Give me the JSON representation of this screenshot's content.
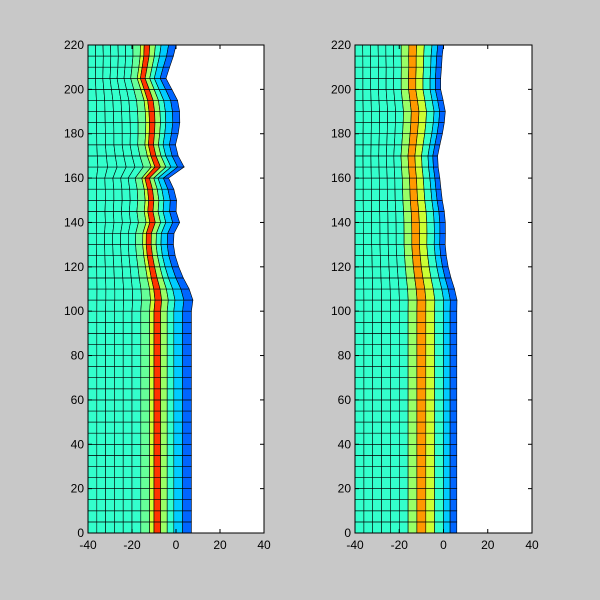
{
  "background": "#c8c8c8",
  "chart_data": [
    {
      "type": "heatmap",
      "xlim": [
        -40,
        40
      ],
      "ylim": [
        0,
        220
      ],
      "xticks": [
        "-40",
        "-20",
        "0",
        "20",
        "40"
      ],
      "yticks": [
        "0",
        "20",
        "40",
        "60",
        "80",
        "100",
        "120",
        "140",
        "160",
        "180",
        "200",
        "220"
      ],
      "grid": false,
      "mesh": {
        "left_x": -40,
        "straight_top_y": 100,
        "row_spacing": 5,
        "top_y": 220,
        "columns": [
          {
            "x0": -40,
            "x1": -36,
            "color": "#33ffcc"
          },
          {
            "x0": -36,
            "x1": -32,
            "color": "#33ffcc"
          },
          {
            "x0": -32,
            "x1": -28,
            "color": "#33ffcc"
          },
          {
            "x0": -28,
            "x1": -24,
            "color": "#33ffcc"
          },
          {
            "x0": -24,
            "x1": -20,
            "color": "#33ffcc"
          },
          {
            "x0": -20,
            "x1": -16,
            "color": "#33ffcc"
          },
          {
            "x0": -16,
            "x1": -12,
            "color": "#66ff99"
          },
          {
            "x0": -12,
            "x1": -10,
            "color": "#ccff33"
          },
          {
            "x0": -10,
            "x1": -7,
            "color": "#ff3300"
          },
          {
            "x0": -7,
            "x1": -4,
            "color": "#99ff66"
          },
          {
            "x0": -4,
            "x1": -1,
            "color": "#33ffcc"
          },
          {
            "x0": -1,
            "x1": 3,
            "color": "#00ccff"
          },
          {
            "x0": 3,
            "x1": 7,
            "color": "#0066ff"
          }
        ],
        "right_edge": [
          [
            100,
            7
          ],
          [
            110,
            6
          ],
          [
            120,
            3
          ],
          [
            128,
            0
          ],
          [
            134,
            -2
          ],
          [
            140,
            0
          ],
          [
            146,
            -2
          ],
          [
            152,
            0
          ],
          [
            160,
            -2
          ],
          [
            166,
            7
          ],
          [
            172,
            0
          ],
          [
            180,
            0
          ],
          [
            188,
            0
          ],
          [
            196,
            0
          ],
          [
            205,
            -3
          ],
          [
            213,
            0
          ],
          [
            220,
            0
          ]
        ],
        "top_edge_x": [
          -40,
          0
        ],
        "waviness": 3
      }
    },
    {
      "type": "heatmap",
      "xlim": [
        -40,
        40
      ],
      "ylim": [
        0,
        220
      ],
      "xticks": [
        "-40",
        "-20",
        "0",
        "20",
        "40"
      ],
      "yticks": [
        "0",
        "20",
        "40",
        "60",
        "80",
        "100",
        "120",
        "140",
        "160",
        "180",
        "200",
        "220"
      ],
      "grid": false,
      "mesh": {
        "left_x": -40,
        "straight_top_y": 100,
        "row_spacing": 5,
        "top_y": 220,
        "columns": [
          {
            "x0": -40,
            "x1": -36,
            "color": "#33ffcc"
          },
          {
            "x0": -36,
            "x1": -32,
            "color": "#33ffcc"
          },
          {
            "x0": -32,
            "x1": -28,
            "color": "#33ffcc"
          },
          {
            "x0": -28,
            "x1": -24,
            "color": "#33ffcc"
          },
          {
            "x0": -24,
            "x1": -20,
            "color": "#33ffcc"
          },
          {
            "x0": -20,
            "x1": -16,
            "color": "#33ffcc"
          },
          {
            "x0": -16,
            "x1": -12,
            "color": "#99ff66"
          },
          {
            "x0": -12,
            "x1": -8,
            "color": "#ff9900"
          },
          {
            "x0": -8,
            "x1": -4,
            "color": "#ccff33"
          },
          {
            "x0": -4,
            "x1": 0,
            "color": "#33ffcc"
          },
          {
            "x0": 0,
            "x1": 3,
            "color": "#00ccff"
          },
          {
            "x0": 3,
            "x1": 6,
            "color": "#0066ff"
          }
        ],
        "right_edge": [
          [
            100,
            6
          ],
          [
            110,
            5
          ],
          [
            120,
            3
          ],
          [
            130,
            1
          ],
          [
            140,
            0
          ],
          [
            150,
            -1
          ],
          [
            160,
            -1
          ],
          [
            170,
            -2
          ],
          [
            180,
            -1
          ],
          [
            190,
            0
          ],
          [
            200,
            -1
          ],
          [
            210,
            0
          ],
          [
            220,
            0
          ]
        ],
        "top_edge_x": [
          -40,
          0
        ],
        "waviness": 1.5
      }
    }
  ]
}
